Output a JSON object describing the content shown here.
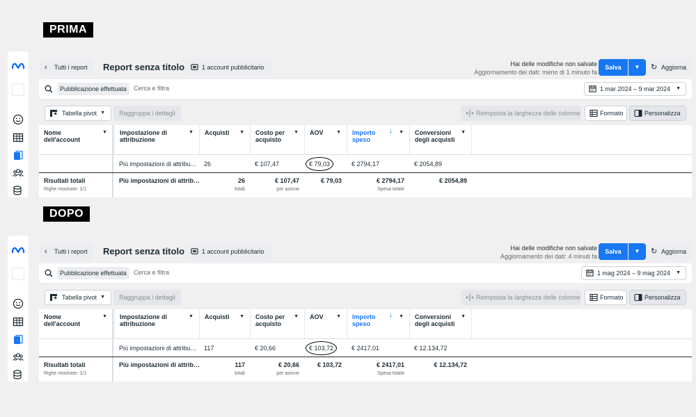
{
  "sections": [
    {
      "label": "PRIMA",
      "back_label": "Tutti i report",
      "report_title": "Report senza titolo",
      "account_label": "1 account pubblicitario",
      "unsaved_title": "Hai delle modifiche non salvate",
      "unsaved_sub": "Aggiornamento dei dati: meno di 1 minuto fa",
      "save_label": "Salva",
      "refresh_label": "Aggiorna",
      "filter_chip": "Pubblicazione effettuata",
      "search_placeholder": "Cerca e filtra",
      "date_range": "1 mar 2024 – 9 mar 2024",
      "pivot_label": "Tabella pivot",
      "group_label": "Raggruppa i dettagli",
      "reset_width_label": "Reimposta la larghezza delle colonne",
      "format_label": "Formato",
      "customize_label": "Personalizza",
      "columns": [
        "Nome dell'account",
        "Impostazione di attribuzione",
        "Acquisti",
        "Costo per acquisto",
        "AOV",
        "Importo speso",
        "Conversioni degli acquisti"
      ],
      "row": [
        "",
        "Più impostazioni di attribu…",
        "26",
        "€ 107,47",
        "€ 79,03",
        "€ 2794,17",
        "€ 2054,89"
      ],
      "totals": {
        "name": "Risultati totali",
        "rows_shown": "Righe mostrate: 1/1",
        "attribution": "Più impostazioni di attrib…",
        "acquisti": "26",
        "acquisti_sub": "totali",
        "costo": "€ 107,47",
        "costo_sub": "per azione",
        "aov": "€ 79,03",
        "importo": "€ 2794,17",
        "importo_sub": "Spesa totale",
        "conversioni": "€ 2054,89"
      }
    },
    {
      "label": "DOPO",
      "back_label": "Tutti i report",
      "report_title": "Report senza titolo",
      "account_label": "1 account pubblicitario",
      "unsaved_title": "Hai delle modifiche non salvate",
      "unsaved_sub": "Aggiornamento dei dati: 4 minuti fa",
      "save_label": "Salva",
      "refresh_label": "Aggiorna",
      "filter_chip": "Pubblicazione effettuata",
      "search_placeholder": "Cerca e filtra",
      "date_range": "1 mag 2024 – 9 mag 2024",
      "pivot_label": "Tabella pivot",
      "group_label": "Raggruppa i dettagli",
      "reset_width_label": "Reimposta la larghezza delle colonne",
      "format_label": "Formato",
      "customize_label": "Personalizza",
      "columns": [
        "Nome dell'account",
        "Impostazione di attribuzione",
        "Acquisti",
        "Costo per acquisto",
        "AOV",
        "Importo speso",
        "Conversioni degli acquisti"
      ],
      "row": [
        "",
        "Più impostazioni di attribu…",
        "117",
        "€ 20,66",
        "€ 103,72",
        "€ 2417,01",
        "€ 12.134,72"
      ],
      "totals": {
        "name": "Risultati totali",
        "rows_shown": "Righe mostrate: 1/1",
        "attribution": "Più impostazioni di attrib…",
        "acquisti": "117",
        "acquisti_sub": "totali",
        "costo": "€ 20,66",
        "costo_sub": "per azione",
        "aov": "€ 103,72",
        "importo": "€ 2417,01",
        "importo_sub": "Spesa totale",
        "conversioni": "€ 12.134,72"
      }
    }
  ],
  "colors": {
    "accent": "#1877f2",
    "background": "#f0f0f0"
  }
}
